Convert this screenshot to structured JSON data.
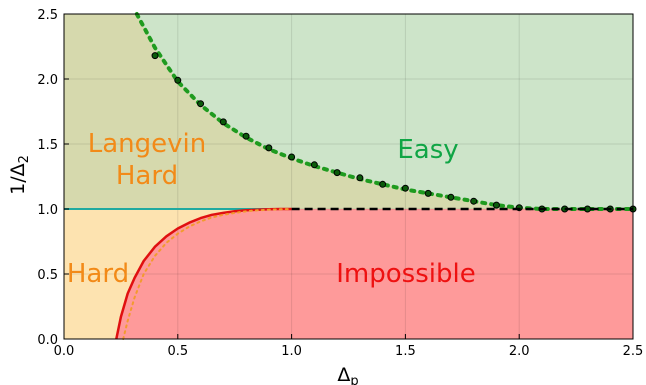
{
  "chart_data": {
    "type": "area",
    "xlabel": "Δ",
    "xlabel_sub": "p",
    "ylabel": "1/Δ",
    "ylabel_sub": "2",
    "xlim": [
      0.0,
      2.5
    ],
    "ylim": [
      0.0,
      2.5
    ],
    "grid": true,
    "xticks": [
      "0.0",
      "0.5",
      "1.0",
      "1.5",
      "2.0",
      "2.5"
    ],
    "yticks": [
      "0.0",
      "0.5",
      "1.0",
      "1.5",
      "2.0",
      "2.5"
    ],
    "regions": [
      {
        "label": "Langevin",
        "label2": "Hard",
        "fill": "#d6d9ad",
        "text_color": "#f28a18"
      },
      {
        "label": "Easy",
        "fill": "#cde4c9",
        "text_color": "#10a545"
      },
      {
        "label": "Hard",
        "fill": "#fde3b0",
        "text_color": "#f28a18"
      },
      {
        "label": "Impossible",
        "fill": "#fe9a9a",
        "text_color": "#ee1111"
      }
    ],
    "series": [
      {
        "style": "dotted",
        "color": "#1f9b1f",
        "x": [
          0.32,
          0.4,
          0.5,
          0.6,
          0.7,
          0.8,
          0.9,
          1.0,
          1.1,
          1.2,
          1.3,
          1.4,
          1.5,
          1.6,
          1.7,
          1.8,
          1.9,
          2.0,
          2.1,
          2.2,
          2.3,
          2.4,
          2.5
        ],
        "y": [
          2.5,
          2.24,
          1.98,
          1.8,
          1.66,
          1.55,
          1.46,
          1.39,
          1.33,
          1.28,
          1.23,
          1.19,
          1.15,
          1.12,
          1.09,
          1.06,
          1.03,
          1.01,
          1.0,
          1.0,
          1.0,
          1.0,
          1.0
        ]
      },
      {
        "style": "markers",
        "color": "#0b5a0b",
        "x": [
          0.4,
          0.5,
          0.6,
          0.7,
          0.8,
          0.9,
          1.0,
          1.1,
          1.2,
          1.3,
          1.4,
          1.5,
          1.6,
          1.7,
          1.8,
          1.9,
          2.0,
          2.1,
          2.2,
          2.3,
          2.4,
          2.5
        ],
        "y": [
          2.18,
          1.99,
          1.81,
          1.67,
          1.56,
          1.47,
          1.4,
          1.34,
          1.28,
          1.24,
          1.19,
          1.16,
          1.12,
          1.09,
          1.06,
          1.03,
          1.01,
          1.0,
          1.0,
          1.0,
          1.0,
          1.0
        ]
      },
      {
        "style": "solid",
        "color": "#20aaa0",
        "x": [
          0.0,
          1.0
        ],
        "y": [
          1.0,
          1.0
        ]
      },
      {
        "style": "dashed",
        "color": "#000000",
        "x": [
          1.0,
          2.5
        ],
        "y": [
          1.0,
          1.0
        ]
      },
      {
        "style": "solid",
        "color": "#e01010",
        "x": [
          0.23,
          0.25,
          0.28,
          0.31,
          0.35,
          0.4,
          0.45,
          0.5,
          0.55,
          0.6,
          0.65,
          0.7,
          0.75,
          0.8,
          0.85,
          0.9,
          0.95,
          1.0
        ],
        "y": [
          0.0,
          0.17,
          0.35,
          0.47,
          0.6,
          0.71,
          0.79,
          0.85,
          0.895,
          0.93,
          0.955,
          0.97,
          0.982,
          0.99,
          0.995,
          0.998,
          1.0,
          1.0
        ]
      },
      {
        "style": "dotted",
        "color": "#f29a2e",
        "x": [
          0.26,
          0.28,
          0.31,
          0.35,
          0.4,
          0.45,
          0.5,
          0.55,
          0.6,
          0.65,
          0.7,
          0.75,
          0.8,
          0.85,
          0.9,
          0.95,
          1.0
        ],
        "y": [
          0.0,
          0.14,
          0.32,
          0.5,
          0.64,
          0.74,
          0.81,
          0.865,
          0.905,
          0.935,
          0.955,
          0.97,
          0.982,
          0.99,
          0.995,
          0.998,
          1.0
        ]
      }
    ]
  }
}
